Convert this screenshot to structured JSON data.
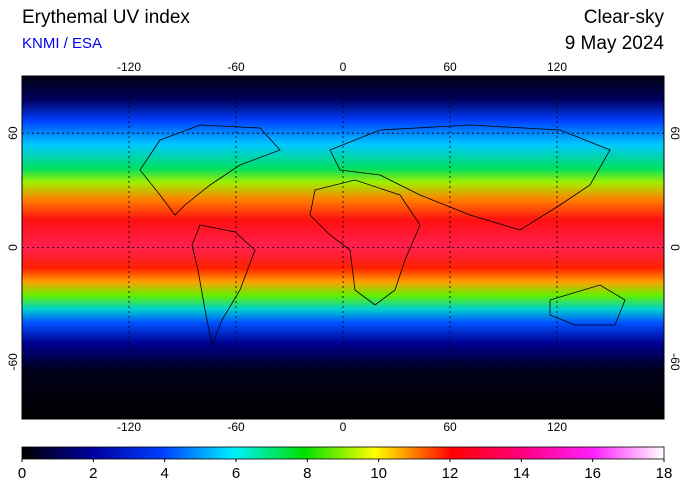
{
  "header": {
    "title": "Erythemal UV index",
    "source": "KNMI / ESA",
    "product": "Clear-sky",
    "date": "9 May 2024"
  },
  "map": {
    "lon_range": [
      -180,
      180
    ],
    "lat_range": [
      -90,
      90
    ],
    "lon_ticks": [
      -120,
      -60,
      0,
      60,
      120
    ],
    "lat_ticks": [
      60,
      0,
      -60
    ]
  },
  "colorbar": {
    "range": [
      0,
      18
    ],
    "ticks": [
      0,
      2,
      4,
      6,
      8,
      10,
      12,
      14,
      16,
      18
    ]
  }
}
